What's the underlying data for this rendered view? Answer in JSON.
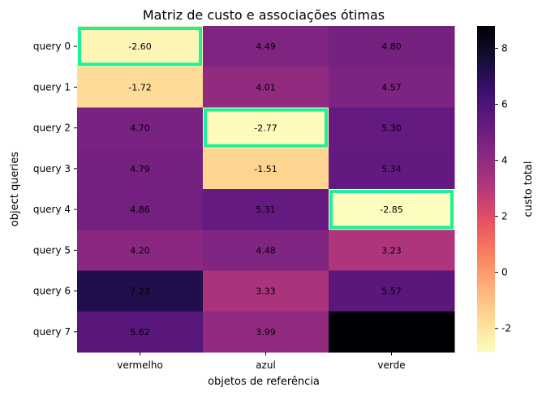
{
  "chart_data": {
    "type": "heatmap",
    "title": "Matriz de custo e associações ótimas",
    "xlabel": "objetos de referência",
    "ylabel": "object queries",
    "categories": [
      "vermelho",
      "azul",
      "verde"
    ],
    "rows": [
      "query 0",
      "query 1",
      "query 2",
      "query 3",
      "query 4",
      "query 5",
      "query 6",
      "query 7"
    ],
    "values": [
      [
        -2.6,
        4.49,
        4.8
      ],
      [
        -1.72,
        4.01,
        4.57
      ],
      [
        4.7,
        -2.77,
        5.3
      ],
      [
        4.79,
        -1.51,
        5.34
      ],
      [
        4.86,
        5.31,
        -2.85
      ],
      [
        4.2,
        4.48,
        3.23
      ],
      [
        7.23,
        3.33,
        5.57
      ],
      [
        5.62,
        3.99,
        8.8
      ]
    ],
    "labels": [
      [
        "-2.60",
        "4.49",
        "4.80"
      ],
      [
        "-1.72",
        "4.01",
        "4.57"
      ],
      [
        "4.70",
        "-2.77",
        "5.30"
      ],
      [
        "4.79",
        "-1.51",
        "5.34"
      ],
      [
        "4.86",
        "5.31",
        "-2.85"
      ],
      [
        "4.20",
        "4.48",
        "3.23"
      ],
      [
        "7.23",
        "3.33",
        "5.57"
      ],
      [
        "5.62",
        "3.99",
        ""
      ]
    ],
    "highlighted_cells": [
      [
        0,
        0
      ],
      [
        2,
        1
      ],
      [
        4,
        2
      ]
    ],
    "highlight_color": "#1ef09a",
    "colormap": "magma_r",
    "colorbar": {
      "label": "custo total",
      "range": [
        -2.85,
        8.8
      ],
      "ticks": [
        "-2",
        "0",
        "2",
        "4",
        "6",
        "8"
      ],
      "tick_values": [
        -2,
        0,
        2,
        4,
        6,
        8
      ]
    },
    "grid": false
  }
}
